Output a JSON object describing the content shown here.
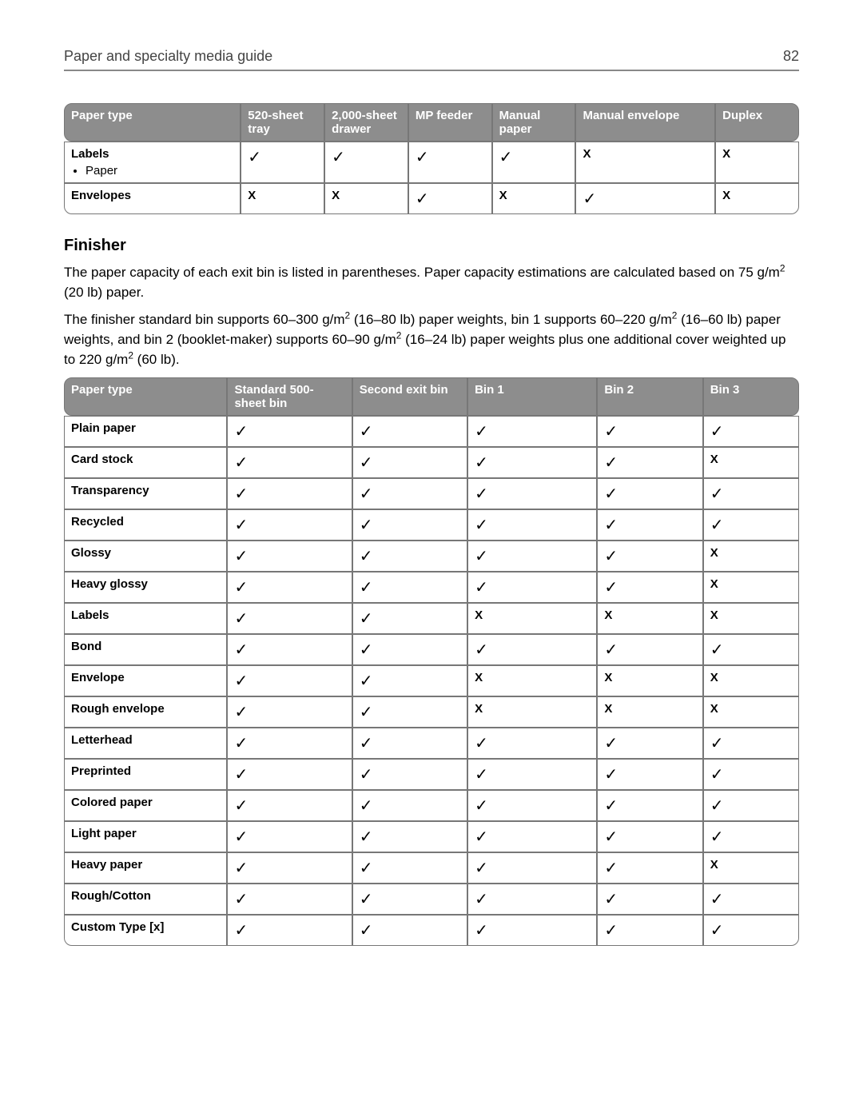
{
  "glyphs": {
    "tick": "✓",
    "cross": "X"
  },
  "colors": {
    "header_bg": "#8d8d8d",
    "header_fg": "#ffffff",
    "border": "#777777",
    "text": "#000000",
    "running_head": "#444444"
  },
  "running_head": {
    "title": "Paper and specialty media guide",
    "page": "82"
  },
  "table1": {
    "columns": [
      "Paper type",
      "520-sheet tray",
      "2,000-sheet drawer",
      "MP feeder",
      "Manual paper",
      "Manual envelope",
      "Duplex"
    ],
    "rows": [
      {
        "label": "Labels",
        "sub": [
          "Paper"
        ],
        "cells": [
          "tick",
          "tick",
          "tick",
          "tick",
          "cross",
          "cross"
        ]
      },
      {
        "label": "Envelopes",
        "cells": [
          "cross",
          "cross",
          "tick",
          "cross",
          "tick",
          "cross"
        ]
      }
    ]
  },
  "section": {
    "title": "Finisher",
    "para1_a": "The paper capacity of each exit bin is listed in parentheses. Paper capacity estimations are calculated based on 75 g/m",
    "para1_b": " (20 lb) paper.",
    "para2_a": "The finisher standard bin supports 60–300 g/m",
    "para2_b": " (16–80 lb) paper weights, bin 1 supports 60–220 g/m",
    "para2_c": " (16–60 lb) paper weights, and bin 2 (booklet-maker) supports 60–90 g/m",
    "para2_d": " (16–24 lb) paper weights plus one additional cover weighted up to 220 g/m",
    "para2_e": " (60 lb)."
  },
  "table2": {
    "columns": [
      "Paper type",
      "Standard 500-sheet bin",
      "Second exit bin",
      "Bin 1",
      "Bin 2",
      "Bin 3"
    ],
    "rows": [
      {
        "label": "Plain paper",
        "cells": [
          "tick",
          "tick",
          "tick",
          "tick",
          "tick"
        ]
      },
      {
        "label": "Card stock",
        "cells": [
          "tick",
          "tick",
          "tick",
          "tick",
          "cross"
        ]
      },
      {
        "label": "Transparency",
        "cells": [
          "tick",
          "tick",
          "tick",
          "tick",
          "tick"
        ]
      },
      {
        "label": "Recycled",
        "cells": [
          "tick",
          "tick",
          "tick",
          "tick",
          "tick"
        ]
      },
      {
        "label": "Glossy",
        "cells": [
          "tick",
          "tick",
          "tick",
          "tick",
          "cross"
        ]
      },
      {
        "label": "Heavy glossy",
        "cells": [
          "tick",
          "tick",
          "tick",
          "tick",
          "cross"
        ]
      },
      {
        "label": "Labels",
        "cells": [
          "tick",
          "tick",
          "cross",
          "cross",
          "cross"
        ]
      },
      {
        "label": "Bond",
        "cells": [
          "tick",
          "tick",
          "tick",
          "tick",
          "tick"
        ]
      },
      {
        "label": "Envelope",
        "cells": [
          "tick",
          "tick",
          "cross",
          "cross",
          "cross"
        ]
      },
      {
        "label": "Rough envelope",
        "cells": [
          "tick",
          "tick",
          "cross",
          "cross",
          "cross"
        ]
      },
      {
        "label": "Letterhead",
        "cells": [
          "tick",
          "tick",
          "tick",
          "tick",
          "tick"
        ]
      },
      {
        "label": "Preprinted",
        "cells": [
          "tick",
          "tick",
          "tick",
          "tick",
          "tick"
        ]
      },
      {
        "label": "Colored paper",
        "cells": [
          "tick",
          "tick",
          "tick",
          "tick",
          "tick"
        ]
      },
      {
        "label": "Light paper",
        "cells": [
          "tick",
          "tick",
          "tick",
          "tick",
          "tick"
        ]
      },
      {
        "label": "Heavy paper",
        "cells": [
          "tick",
          "tick",
          "tick",
          "tick",
          "cross"
        ]
      },
      {
        "label": "Rough/Cotton",
        "cells": [
          "tick",
          "tick",
          "tick",
          "tick",
          "tick"
        ]
      },
      {
        "label": "Custom Type [x]",
        "cells": [
          "tick",
          "tick",
          "tick",
          "tick",
          "tick"
        ]
      }
    ]
  }
}
